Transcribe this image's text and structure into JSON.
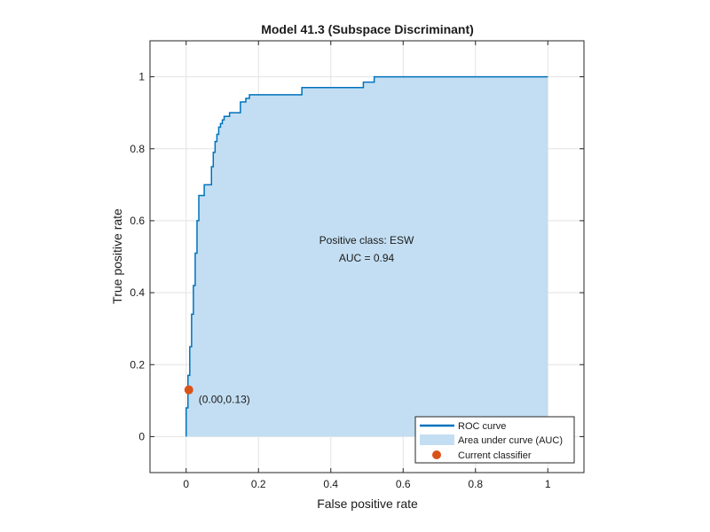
{
  "chart_data": {
    "type": "line",
    "title": "Model 41.3 (Subspace Discriminant)",
    "xlabel": "False positive rate",
    "ylabel": "True positive rate",
    "xlim": [
      -0.1,
      1.1
    ],
    "ylim": [
      -0.1,
      1.1
    ],
    "xticks": [
      0,
      0.2,
      0.4,
      0.6,
      0.8,
      1
    ],
    "yticks": [
      0,
      0.2,
      0.4,
      0.6,
      0.8,
      1
    ],
    "xtick_labels": [
      "0",
      "0.2",
      "0.4",
      "0.6",
      "0.8",
      "1"
    ],
    "ytick_labels": [
      "0",
      "0.2",
      "0.4",
      "0.6",
      "0.8",
      "1"
    ],
    "grid": true,
    "legend_position": "bottom-right",
    "legend": {
      "roc": "ROC curve",
      "auc": "Area under curve (AUC)",
      "classifier": "Current classifier"
    },
    "annotation": {
      "positive_class": "Positive class: ESW",
      "auc": "AUC = 0.94"
    },
    "current_classifier": {
      "x": 0.0,
      "y": 0.13,
      "label": "(0.00,0.13)"
    },
    "colors": {
      "roc": "#0072bd",
      "auc_fill": "#c3def2",
      "classifier": "#d95319"
    },
    "series": [
      {
        "name": "ROC curve",
        "x": [
          0,
          0,
          0.005,
          0.005,
          0.01,
          0.01,
          0.015,
          0.015,
          0.02,
          0.02,
          0.025,
          0.025,
          0.03,
          0.03,
          0.035,
          0.035,
          0.05,
          0.05,
          0.07,
          0.07,
          0.075,
          0.075,
          0.08,
          0.08,
          0.085,
          0.085,
          0.09,
          0.09,
          0.095,
          0.095,
          0.1,
          0.1,
          0.105,
          0.105,
          0.12,
          0.12,
          0.15,
          0.15,
          0.165,
          0.165,
          0.175,
          0.175,
          0.32,
          0.32,
          0.49,
          0.49,
          0.52,
          0.52,
          1.0
        ],
        "y": [
          0,
          0.08,
          0.08,
          0.17,
          0.17,
          0.25,
          0.25,
          0.34,
          0.34,
          0.42,
          0.42,
          0.51,
          0.51,
          0.6,
          0.6,
          0.67,
          0.67,
          0.7,
          0.7,
          0.75,
          0.75,
          0.79,
          0.79,
          0.82,
          0.82,
          0.84,
          0.84,
          0.86,
          0.86,
          0.87,
          0.87,
          0.88,
          0.88,
          0.89,
          0.89,
          0.9,
          0.9,
          0.93,
          0.93,
          0.94,
          0.94,
          0.95,
          0.95,
          0.97,
          0.97,
          0.985,
          0.985,
          1.0,
          1.0
        ]
      }
    ]
  }
}
